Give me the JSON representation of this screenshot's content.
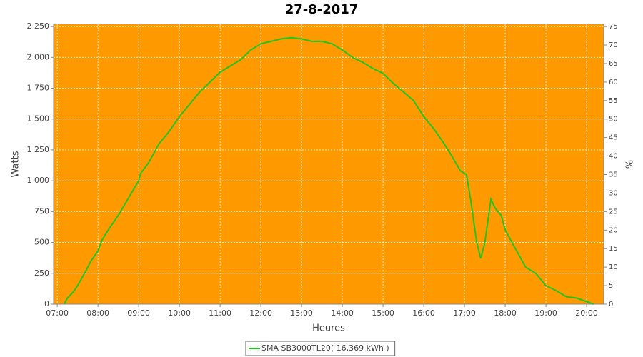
{
  "chart_data": {
    "type": "line",
    "title": "27-8-2017",
    "x_label": "Heures",
    "y_label": "Watts",
    "y2_label": "%",
    "x": [
      7.17,
      7.25,
      7.4,
      7.5,
      7.67,
      7.83,
      8.0,
      8.1,
      8.25,
      8.5,
      8.75,
      9.0,
      9.05,
      9.25,
      9.5,
      9.75,
      10.0,
      10.25,
      10.5,
      10.75,
      11.0,
      11.25,
      11.5,
      11.75,
      12.0,
      12.25,
      12.5,
      12.75,
      13.0,
      13.25,
      13.5,
      13.75,
      14.0,
      14.25,
      14.5,
      14.75,
      15.0,
      15.25,
      15.5,
      15.75,
      16.0,
      16.25,
      16.5,
      16.67,
      16.9,
      17.05,
      17.15,
      17.3,
      17.4,
      17.5,
      17.65,
      17.75,
      17.9,
      18.0,
      18.25,
      18.5,
      18.75,
      19.0,
      19.25,
      19.5,
      19.75,
      20.0,
      20.17
    ],
    "series": [
      {
        "name": "SMA SB3000TL20( 16,369 kWh )",
        "color": "#22c41e",
        "values": [
          0,
          50,
          100,
          150,
          250,
          350,
          430,
          520,
          600,
          720,
          860,
          1000,
          1060,
          1150,
          1300,
          1400,
          1520,
          1620,
          1720,
          1800,
          1880,
          1930,
          1980,
          2060,
          2110,
          2130,
          2150,
          2160,
          2150,
          2130,
          2130,
          2110,
          2060,
          2000,
          1960,
          1910,
          1870,
          1790,
          1720,
          1650,
          1520,
          1420,
          1300,
          1210,
          1080,
          1050,
          850,
          500,
          370,
          500,
          850,
          780,
          720,
          600,
          450,
          300,
          250,
          150,
          110,
          60,
          50,
          20,
          0
        ]
      }
    ],
    "xlim": [
      6.91,
      20.42
    ],
    "xticks": [
      {
        "value": 7,
        "label": "07:00"
      },
      {
        "value": 8,
        "label": "08:00"
      },
      {
        "value": 9,
        "label": "09:00"
      },
      {
        "value": 10,
        "label": "10:00"
      },
      {
        "value": 11,
        "label": "11:00"
      },
      {
        "value": 12,
        "label": "12:00"
      },
      {
        "value": 13,
        "label": "13:00"
      },
      {
        "value": 14,
        "label": "14:00"
      },
      {
        "value": 15,
        "label": "15:00"
      },
      {
        "value": 16,
        "label": "16:00"
      },
      {
        "value": 17,
        "label": "17:00"
      },
      {
        "value": 18,
        "label": "18:00"
      },
      {
        "value": 19,
        "label": "19:00"
      },
      {
        "value": 20,
        "label": "20:00"
      }
    ],
    "ylim": [
      0,
      2268
    ],
    "yticks": [
      0,
      250,
      500,
      750,
      {
        "value": 1000,
        "label": "1 000"
      },
      {
        "value": 1250,
        "label": "1 250"
      },
      {
        "value": 1500,
        "label": "1 500"
      },
      {
        "value": 1750,
        "label": "1 750"
      },
      {
        "value": 2000,
        "label": "2 000"
      },
      {
        "value": 2250,
        "label": "2 250"
      }
    ],
    "y2lim": [
      0,
      75.6
    ],
    "y2ticks": [
      0,
      5,
      10,
      15,
      20,
      25,
      30,
      35,
      40,
      45,
      50,
      55,
      60,
      65,
      70,
      75
    ],
    "grid": true,
    "plot_background": "#ff9900",
    "legend": "bottom"
  }
}
